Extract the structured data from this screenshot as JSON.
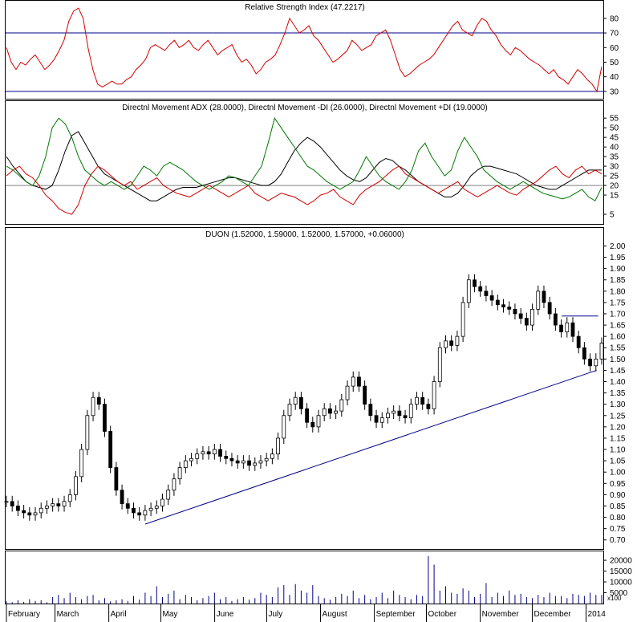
{
  "chart_data": [
    {
      "type": "line",
      "title": "Relative Strength Index (47.2217)",
      "ylim": [
        25,
        92
      ],
      "yticks": [
        30,
        40,
        50,
        60,
        70,
        80
      ],
      "reference_lines": [
        70,
        30
      ],
      "colors": {
        "rsi": "#d40000",
        "reference": "#00008b"
      },
      "series": [
        {
          "name": "",
          "values": [
            60,
            50,
            45,
            50,
            48,
            52,
            55,
            50,
            45,
            48,
            52,
            58,
            65,
            78,
            85,
            87,
            80,
            60,
            45,
            35,
            33,
            35,
            37,
            35,
            35,
            38,
            40,
            45,
            48,
            52,
            60,
            62,
            60,
            58,
            62,
            65,
            60,
            62,
            65,
            60,
            58,
            62,
            65,
            60,
            55,
            58,
            60,
            62,
            55,
            50,
            52,
            48,
            42,
            45,
            50,
            52,
            55,
            62,
            70,
            80,
            75,
            70,
            72,
            75,
            68,
            65,
            60,
            55,
            50,
            52,
            55,
            58,
            65,
            62,
            58,
            60,
            62,
            68,
            70,
            72,
            65,
            55,
            45,
            40,
            42,
            45,
            48,
            50,
            52,
            55,
            60,
            65,
            70,
            75,
            78,
            72,
            70,
            68,
            75,
            80,
            78,
            72,
            68,
            62,
            58,
            55,
            60,
            58,
            55,
            52,
            50,
            48,
            45,
            42,
            45,
            40,
            38,
            35,
            40,
            45,
            42,
            38,
            35,
            30,
            47
          ]
        }
      ]
    },
    {
      "type": "line",
      "title": "Directnl Movement ADX (28.0000), Directnl Movement -DI (26.0000), Directnl Movement +DI (19.0000)",
      "ylim": [
        0,
        58
      ],
      "yticks": [
        5,
        15,
        20,
        25,
        30,
        35,
        40,
        45,
        50,
        55
      ],
      "reference_lines": [
        20
      ],
      "colors": {
        "adx": "#000000",
        "minus_di": "#d40000",
        "plus_di": "#007800",
        "reference": "#808080"
      },
      "series": [
        {
          "name": "",
          "values": [
            35,
            30,
            26,
            22,
            20,
            19,
            18,
            20,
            28,
            38,
            46,
            48,
            42,
            36,
            30,
            26,
            24,
            22,
            20,
            18,
            16,
            14,
            12,
            12,
            14,
            16,
            18,
            19,
            19,
            19,
            20,
            21,
            22,
            23,
            24,
            24,
            23,
            22,
            21,
            20,
            20,
            22,
            26,
            32,
            38,
            42,
            45,
            43,
            40,
            36,
            32,
            28,
            25,
            23,
            22,
            24,
            28,
            32,
            34,
            33,
            30,
            28,
            25,
            22,
            20,
            18,
            16,
            14,
            14,
            16,
            20,
            25,
            28,
            30,
            30,
            29,
            28,
            27,
            26,
            24,
            22,
            20,
            19,
            18,
            18,
            20,
            22,
            24,
            26,
            28,
            28,
            28
          ]
        },
        {
          "name": "",
          "values": [
            25,
            28,
            30,
            26,
            24,
            20,
            15,
            12,
            8,
            6,
            5,
            10,
            20,
            26,
            30,
            28,
            25,
            22,
            20,
            22,
            18,
            20,
            22,
            24,
            20,
            18,
            16,
            15,
            14,
            16,
            18,
            20,
            18,
            16,
            14,
            16,
            18,
            20,
            16,
            14,
            12,
            14,
            16,
            15,
            14,
            12,
            10,
            12,
            15,
            16,
            18,
            14,
            12,
            10,
            15,
            18,
            20,
            22,
            25,
            28,
            30,
            26,
            24,
            22,
            20,
            18,
            16,
            18,
            20,
            22,
            18,
            16,
            14,
            16,
            18,
            20,
            18,
            16,
            15,
            18,
            20,
            22,
            25,
            28,
            30,
            26,
            24,
            28,
            30,
            26,
            28,
            26
          ]
        },
        {
          "name": "",
          "values": [
            30,
            28,
            25,
            22,
            20,
            25,
            35,
            50,
            55,
            52,
            45,
            35,
            28,
            25,
            22,
            20,
            22,
            20,
            18,
            20,
            25,
            30,
            28,
            25,
            30,
            32,
            30,
            28,
            25,
            22,
            20,
            18,
            20,
            22,
            25,
            24,
            22,
            20,
            25,
            30,
            42,
            55,
            50,
            45,
            40,
            35,
            30,
            28,
            25,
            22,
            20,
            18,
            20,
            22,
            28,
            35,
            30,
            25,
            22,
            20,
            18,
            22,
            28,
            38,
            42,
            35,
            30,
            25,
            28,
            38,
            45,
            40,
            35,
            28,
            25,
            22,
            20,
            18,
            20,
            22,
            20,
            18,
            16,
            15,
            14,
            13,
            14,
            16,
            18,
            14,
            12,
            19
          ]
        }
      ]
    },
    {
      "type": "candlestick",
      "title": "DUON (1.52000, 1.59000, 1.52000, 1.57000, +0.06000)",
      "ylim": [
        0.66,
        2.03
      ],
      "yticks": [
        0.7,
        0.75,
        0.8,
        0.85,
        0.9,
        0.95,
        1.0,
        1.05,
        1.1,
        1.15,
        1.2,
        1.25,
        1.3,
        1.35,
        1.4,
        1.45,
        1.5,
        1.55,
        1.6,
        1.65,
        1.7,
        1.75,
        1.8,
        1.85,
        1.9,
        1.95,
        2.0
      ],
      "colors": {
        "bars": "#000000",
        "trendline": "#00008b",
        "level": "#00008b"
      },
      "close": [
        0.87,
        0.85,
        0.83,
        0.82,
        0.81,
        0.82,
        0.84,
        0.85,
        0.86,
        0.85,
        0.87,
        0.9,
        0.98,
        1.1,
        1.25,
        1.33,
        1.3,
        1.18,
        1.02,
        0.92,
        0.86,
        0.84,
        0.82,
        0.81,
        0.83,
        0.84,
        0.85,
        0.88,
        0.92,
        0.97,
        1.02,
        1.05,
        1.06,
        1.08,
        1.09,
        1.08,
        1.1,
        1.07,
        1.06,
        1.05,
        1.04,
        1.05,
        1.03,
        1.04,
        1.05,
        1.06,
        1.08,
        1.15,
        1.25,
        1.3,
        1.33,
        1.28,
        1.22,
        1.2,
        1.25,
        1.28,
        1.26,
        1.27,
        1.32,
        1.38,
        1.42,
        1.38,
        1.3,
        1.25,
        1.22,
        1.24,
        1.26,
        1.27,
        1.25,
        1.24,
        1.3,
        1.33,
        1.3,
        1.28,
        1.4,
        1.55,
        1.58,
        1.56,
        1.6,
        1.75,
        1.85,
        1.82,
        1.8,
        1.78,
        1.76,
        1.74,
        1.73,
        1.72,
        1.7,
        1.68,
        1.65,
        1.72,
        1.8,
        1.75,
        1.7,
        1.65,
        1.62,
        1.66,
        1.6,
        1.55,
        1.5,
        1.47,
        1.5,
        1.57
      ],
      "trendline": {
        "x": [
          "2013-04-22",
          "2014-01-07"
        ],
        "y": [
          0.77,
          1.45
        ]
      },
      "level_line": {
        "x": [
          "2013-12-18",
          "2014-01-08"
        ],
        "y": [
          1.69,
          1.69
        ]
      }
    },
    {
      "type": "bar",
      "title": "",
      "ylim": [
        0,
        23000
      ],
      "yticks": [
        5000,
        10000,
        15000,
        20000
      ],
      "unit_label": "x100",
      "colors": {
        "bars": "#00008b"
      },
      "values": [
        1000,
        600,
        1500,
        800,
        2000,
        1200,
        1500,
        600,
        3000,
        4000,
        2500,
        5000,
        3000,
        2000,
        3500,
        4000,
        1500,
        2500,
        1000,
        1500,
        2000,
        1200,
        3500,
        1800,
        5000,
        3500,
        8000,
        3000,
        4500,
        6000,
        2000,
        4000,
        3000,
        1500,
        2500,
        3500,
        5000,
        2000,
        3000,
        1200,
        2000,
        3000,
        1800,
        2500,
        5000,
        4000,
        3000,
        7500,
        8500,
        4000,
        9000,
        6000,
        5000,
        8500,
        3500,
        2500,
        1800,
        3000,
        4500,
        3500,
        6000,
        2500,
        4000,
        2000,
        3000,
        5000,
        2500,
        6000,
        4000,
        3000,
        2000,
        4000,
        3500,
        22000,
        18000,
        6000,
        8000,
        5000,
        4500,
        7000,
        6000,
        3000,
        4500,
        9500,
        3000,
        5000,
        3500,
        6000,
        4000,
        4500,
        3000,
        2500,
        4000,
        3000,
        5000,
        3500,
        3500,
        2500,
        4500,
        4000,
        3500,
        5000,
        4000,
        4000
      ]
    }
  ],
  "months": [
    "February",
    "March",
    "April",
    "May",
    "June",
    "July",
    "August",
    "September",
    "October",
    "November",
    "December",
    "2014"
  ]
}
